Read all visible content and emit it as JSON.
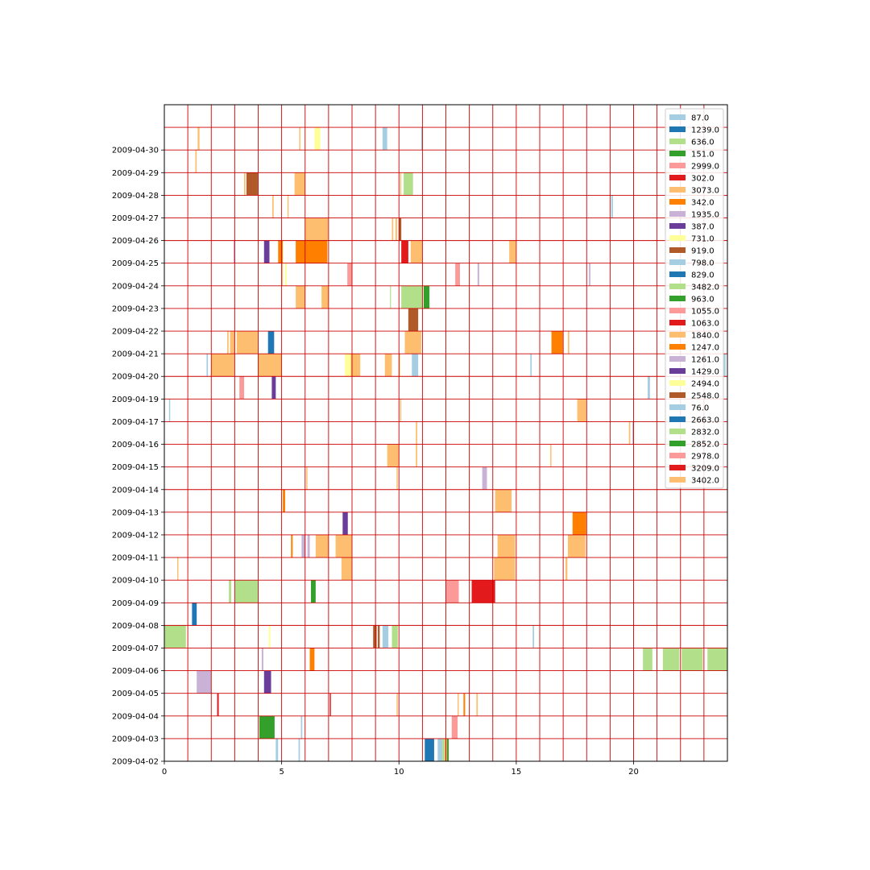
{
  "chart_data": {
    "type": "timeline",
    "xlabel": "",
    "ylabel": "",
    "title": "",
    "xlim": [
      0,
      24
    ],
    "xticks": [
      0,
      5,
      10,
      15,
      20
    ],
    "xtick_labels": [
      "0",
      "5",
      "10",
      "15",
      "20"
    ],
    "vertical_gridlines": [
      1,
      2,
      3,
      4,
      5,
      6,
      7,
      8,
      9,
      10,
      11,
      12,
      13,
      14,
      15,
      16,
      17,
      18,
      19,
      20,
      21,
      22,
      23
    ],
    "grid_color": "#cc0000",
    "grid": true,
    "legend_position": "upper right",
    "rows": [
      "2009-04-02",
      "2009-04-03",
      "2009-04-04",
      "2009-04-05",
      "2009-04-06",
      "2009-04-07",
      "2009-04-08",
      "2009-04-09",
      "2009-04-10",
      "2009-04-11",
      "2009-04-12",
      "2009-04-13",
      "2009-04-14",
      "2009-04-15",
      "2009-04-16",
      "2009-04-17",
      "2009-04-19",
      "2009-04-20",
      "2009-04-21",
      "2009-04-22",
      "2009-04-23",
      "2009-04-24",
      "2009-04-25",
      "2009-04-26",
      "2009-04-27",
      "2009-04-28",
      "2009-04-29",
      "2009-04-30",
      ""
    ],
    "series": [
      {
        "name": "87.0",
        "color": "#a6cee3"
      },
      {
        "name": "1239.0",
        "color": "#1f78b4"
      },
      {
        "name": "636.0",
        "color": "#b2df8a"
      },
      {
        "name": "151.0",
        "color": "#33a02c"
      },
      {
        "name": "2999.0",
        "color": "#fb9a99"
      },
      {
        "name": "302.0",
        "color": "#e31a1c"
      },
      {
        "name": "3073.0",
        "color": "#fdbf6f"
      },
      {
        "name": "342.0",
        "color": "#ff7f00"
      },
      {
        "name": "1935.0",
        "color": "#cab2d6"
      },
      {
        "name": "387.0",
        "color": "#6a3d9a"
      },
      {
        "name": "731.0",
        "color": "#ffff99"
      },
      {
        "name": "919.0",
        "color": "#b15928"
      },
      {
        "name": "798.0",
        "color": "#a6cee3"
      },
      {
        "name": "829.0",
        "color": "#1f78b4"
      },
      {
        "name": "3482.0",
        "color": "#b2df8a"
      },
      {
        "name": "963.0",
        "color": "#33a02c"
      },
      {
        "name": "1055.0",
        "color": "#fb9a99"
      },
      {
        "name": "1063.0",
        "color": "#e31a1c"
      },
      {
        "name": "1840.0",
        "color": "#fdbf6f"
      },
      {
        "name": "1247.0",
        "color": "#ff7f00"
      },
      {
        "name": "1261.0",
        "color": "#cab2d6"
      },
      {
        "name": "1429.0",
        "color": "#6a3d9a"
      },
      {
        "name": "2494.0",
        "color": "#ffff99"
      },
      {
        "name": "2548.0",
        "color": "#b15928"
      },
      {
        "name": "76.0",
        "color": "#a6cee3"
      },
      {
        "name": "2663.0",
        "color": "#1f78b4"
      },
      {
        "name": "2832.0",
        "color": "#b2df8a"
      },
      {
        "name": "2852.0",
        "color": "#33a02c"
      },
      {
        "name": "2978.0",
        "color": "#fb9a99"
      },
      {
        "name": "3209.0",
        "color": "#e31a1c"
      },
      {
        "name": "3402.0",
        "color": "#fdbf6f"
      }
    ],
    "segments": [
      {
        "row": 0,
        "start": 4.75,
        "end": 4.85,
        "color": "#a6cee3"
      },
      {
        "row": 0,
        "start": 5.72,
        "end": 5.78,
        "color": "#a6cee3"
      },
      {
        "row": 0,
        "start": 11.1,
        "end": 11.5,
        "color": "#1f78b4"
      },
      {
        "row": 0,
        "start": 11.65,
        "end": 11.85,
        "color": "#a6cee3"
      },
      {
        "row": 0,
        "start": 11.85,
        "end": 11.95,
        "color": "#b2df8a"
      },
      {
        "row": 0,
        "start": 11.95,
        "end": 12.05,
        "color": "#fdbf6f"
      },
      {
        "row": 0,
        "start": 12.05,
        "end": 12.12,
        "color": "#33a02c"
      },
      {
        "row": 1,
        "start": 4.05,
        "end": 4.7,
        "color": "#33a02c"
      },
      {
        "row": 1,
        "start": 5.82,
        "end": 5.88,
        "color": "#a6cee3"
      },
      {
        "row": 1,
        "start": 12.25,
        "end": 12.5,
        "color": "#fb9a99"
      },
      {
        "row": 2,
        "start": 2.25,
        "end": 2.32,
        "color": "#e31a1c"
      },
      {
        "row": 2,
        "start": 7.05,
        "end": 7.1,
        "color": "#e31a1c"
      },
      {
        "row": 2,
        "start": 9.9,
        "end": 9.95,
        "color": "#fdbf6f"
      },
      {
        "row": 2,
        "start": 12.5,
        "end": 12.55,
        "color": "#fdbf6f"
      },
      {
        "row": 2,
        "start": 12.75,
        "end": 12.82,
        "color": "#ff7f00"
      },
      {
        "row": 2,
        "start": 13.3,
        "end": 13.36,
        "color": "#fdbf6f"
      },
      {
        "row": 3,
        "start": 1.38,
        "end": 2.0,
        "color": "#cab2d6"
      },
      {
        "row": 3,
        "start": 4.25,
        "end": 4.55,
        "color": "#6a3d9a"
      },
      {
        "row": 4,
        "start": 4.15,
        "end": 4.22,
        "color": "#cab2d6"
      },
      {
        "row": 4,
        "start": 6.2,
        "end": 6.4,
        "color": "#ff7f00"
      },
      {
        "row": 4,
        "start": 20.4,
        "end": 20.8,
        "color": "#b2df8a"
      },
      {
        "row": 4,
        "start": 21.25,
        "end": 21.95,
        "color": "#b2df8a"
      },
      {
        "row": 4,
        "start": 22.05,
        "end": 22.95,
        "color": "#b2df8a"
      },
      {
        "row": 4,
        "start": 23.15,
        "end": 24.0,
        "color": "#b2df8a"
      },
      {
        "row": 5,
        "start": 0.0,
        "end": 0.92,
        "color": "#b2df8a"
      },
      {
        "row": 5,
        "start": 4.45,
        "end": 4.52,
        "color": "#ffff99"
      },
      {
        "row": 5,
        "start": 8.9,
        "end": 9.05,
        "color": "#b15928"
      },
      {
        "row": 5,
        "start": 9.1,
        "end": 9.18,
        "color": "#b15928"
      },
      {
        "row": 5,
        "start": 9.3,
        "end": 9.55,
        "color": "#a6cee3"
      },
      {
        "row": 5,
        "start": 9.7,
        "end": 9.95,
        "color": "#b2df8a"
      },
      {
        "row": 5,
        "start": 15.7,
        "end": 15.76,
        "color": "#a6cee3"
      },
      {
        "row": 6,
        "start": 1.18,
        "end": 1.38,
        "color": "#1f78b4"
      },
      {
        "row": 7,
        "start": 2.75,
        "end": 2.85,
        "color": "#b2df8a"
      },
      {
        "row": 7,
        "start": 3.02,
        "end": 3.98,
        "color": "#b2df8a"
      },
      {
        "row": 7,
        "start": 6.25,
        "end": 6.45,
        "color": "#33a02c"
      },
      {
        "row": 7,
        "start": 12.0,
        "end": 12.55,
        "color": "#fb9a99"
      },
      {
        "row": 7,
        "start": 13.1,
        "end": 14.1,
        "color": "#e31a1c"
      },
      {
        "row": 8,
        "start": 0.55,
        "end": 0.6,
        "color": "#fdbf6f"
      },
      {
        "row": 8,
        "start": 7.55,
        "end": 8.0,
        "color": "#fdbf6f"
      },
      {
        "row": 8,
        "start": 14.05,
        "end": 14.95,
        "color": "#fdbf6f"
      },
      {
        "row": 8,
        "start": 17.1,
        "end": 17.18,
        "color": "#fdbf6f"
      },
      {
        "row": 9,
        "start": 5.4,
        "end": 5.47,
        "color": "#ff7f00"
      },
      {
        "row": 9,
        "start": 5.85,
        "end": 6.02,
        "color": "#cab2d6"
      },
      {
        "row": 9,
        "start": 6.1,
        "end": 6.2,
        "color": "#cab2d6"
      },
      {
        "row": 9,
        "start": 6.45,
        "end": 7.0,
        "color": "#fdbf6f"
      },
      {
        "row": 9,
        "start": 7.3,
        "end": 8.0,
        "color": "#fdbf6f"
      },
      {
        "row": 9,
        "start": 14.2,
        "end": 14.95,
        "color": "#fdbf6f"
      },
      {
        "row": 9,
        "start": 17.2,
        "end": 17.95,
        "color": "#fdbf6f"
      },
      {
        "row": 10,
        "start": 7.6,
        "end": 7.82,
        "color": "#6a3d9a"
      },
      {
        "row": 10,
        "start": 17.4,
        "end": 17.98,
        "color": "#ff7f00"
      },
      {
        "row": 11,
        "start": 5.05,
        "end": 5.15,
        "color": "#ff7f00"
      },
      {
        "row": 11,
        "start": 14.1,
        "end": 14.8,
        "color": "#fdbf6f"
      },
      {
        "row": 12,
        "start": 6.05,
        "end": 6.1,
        "color": "#fdbf6f"
      },
      {
        "row": 12,
        "start": 9.9,
        "end": 9.95,
        "color": "#fdbf6f"
      },
      {
        "row": 12,
        "start": 13.55,
        "end": 13.75,
        "color": "#cab2d6"
      },
      {
        "row": 13,
        "start": 9.5,
        "end": 10.0,
        "color": "#fdbf6f"
      },
      {
        "row": 13,
        "start": 10.72,
        "end": 10.78,
        "color": "#fdbf6f"
      },
      {
        "row": 13,
        "start": 16.45,
        "end": 16.5,
        "color": "#fdbf6f"
      },
      {
        "row": 14,
        "start": 10.72,
        "end": 10.78,
        "color": "#fdbf6f"
      },
      {
        "row": 14,
        "start": 19.8,
        "end": 19.86,
        "color": "#fdbf6f"
      },
      {
        "row": 14,
        "start": 19.95,
        "end": 20.0,
        "color": "#cab2d6"
      },
      {
        "row": 15,
        "start": 0.2,
        "end": 0.25,
        "color": "#a6cee3"
      },
      {
        "row": 15,
        "start": 10.05,
        "end": 10.1,
        "color": "#fdbf6f"
      },
      {
        "row": 15,
        "start": 17.6,
        "end": 17.98,
        "color": "#fdbf6f"
      },
      {
        "row": 16,
        "start": 3.2,
        "end": 3.4,
        "color": "#fb9a99"
      },
      {
        "row": 16,
        "start": 4.58,
        "end": 4.75,
        "color": "#6a3d9a"
      },
      {
        "row": 16,
        "start": 20.6,
        "end": 20.7,
        "color": "#a6cee3"
      },
      {
        "row": 17,
        "start": 1.8,
        "end": 1.86,
        "color": "#a6cee3"
      },
      {
        "row": 17,
        "start": 2.0,
        "end": 2.98,
        "color": "#fdbf6f"
      },
      {
        "row": 17,
        "start": 4.0,
        "end": 5.0,
        "color": "#fdbf6f"
      },
      {
        "row": 17,
        "start": 7.7,
        "end": 7.95,
        "color": "#ffff99"
      },
      {
        "row": 17,
        "start": 7.95,
        "end": 8.35,
        "color": "#fdbf6f"
      },
      {
        "row": 17,
        "start": 9.4,
        "end": 9.7,
        "color": "#fdbf6f"
      },
      {
        "row": 17,
        "start": 10.0,
        "end": 10.05,
        "color": "#fdbf6f"
      },
      {
        "row": 17,
        "start": 10.55,
        "end": 10.82,
        "color": "#a6cee3"
      },
      {
        "row": 17,
        "start": 15.6,
        "end": 15.66,
        "color": "#a6cee3"
      },
      {
        "row": 17,
        "start": 23.85,
        "end": 23.92,
        "color": "#a6cee3"
      },
      {
        "row": 18,
        "start": 2.68,
        "end": 2.74,
        "color": "#fdbf6f"
      },
      {
        "row": 18,
        "start": 2.8,
        "end": 3.0,
        "color": "#fdbf6f"
      },
      {
        "row": 18,
        "start": 3.08,
        "end": 3.98,
        "color": "#fdbf6f"
      },
      {
        "row": 18,
        "start": 4.42,
        "end": 4.68,
        "color": "#1f78b4"
      },
      {
        "row": 18,
        "start": 10.25,
        "end": 10.95,
        "color": "#fdbf6f"
      },
      {
        "row": 18,
        "start": 16.5,
        "end": 16.98,
        "color": "#ff7f00"
      },
      {
        "row": 18,
        "start": 17.2,
        "end": 17.26,
        "color": "#fdbf6f"
      },
      {
        "row": 19,
        "start": 10.4,
        "end": 10.82,
        "color": "#b15928"
      },
      {
        "row": 20,
        "start": 5.6,
        "end": 6.0,
        "color": "#fdbf6f"
      },
      {
        "row": 20,
        "start": 6.7,
        "end": 7.0,
        "color": "#fdbf6f"
      },
      {
        "row": 20,
        "start": 9.62,
        "end": 9.66,
        "color": "#b2df8a"
      },
      {
        "row": 20,
        "start": 10.1,
        "end": 11.0,
        "color": "#b2df8a"
      },
      {
        "row": 20,
        "start": 11.05,
        "end": 11.3,
        "color": "#33a02c"
      },
      {
        "row": 21,
        "start": 5.0,
        "end": 5.05,
        "color": "#fdbf6f"
      },
      {
        "row": 21,
        "start": 5.15,
        "end": 5.22,
        "color": "#ffff99"
      },
      {
        "row": 21,
        "start": 7.8,
        "end": 8.0,
        "color": "#fb9a99"
      },
      {
        "row": 21,
        "start": 12.4,
        "end": 12.6,
        "color": "#fb9a99"
      },
      {
        "row": 21,
        "start": 13.35,
        "end": 13.42,
        "color": "#cab2d6"
      },
      {
        "row": 21,
        "start": 18.1,
        "end": 18.16,
        "color": "#cab2d6"
      },
      {
        "row": 22,
        "start": 2.95,
        "end": 3.02,
        "color": "#cab2d6"
      },
      {
        "row": 22,
        "start": 4.25,
        "end": 4.48,
        "color": "#6a3d9a"
      },
      {
        "row": 22,
        "start": 4.85,
        "end": 5.05,
        "color": "#ff7f00"
      },
      {
        "row": 22,
        "start": 5.6,
        "end": 6.0,
        "color": "#ff7f00"
      },
      {
        "row": 22,
        "start": 6.0,
        "end": 6.95,
        "color": "#ff7f00"
      },
      {
        "row": 22,
        "start": 10.1,
        "end": 10.4,
        "color": "#e31a1c"
      },
      {
        "row": 22,
        "start": 10.5,
        "end": 11.0,
        "color": "#fdbf6f"
      },
      {
        "row": 22,
        "start": 14.7,
        "end": 14.98,
        "color": "#fdbf6f"
      },
      {
        "row": 23,
        "start": 6.0,
        "end": 6.98,
        "color": "#fdbf6f"
      },
      {
        "row": 23,
        "start": 9.7,
        "end": 9.76,
        "color": "#fdbf6f"
      },
      {
        "row": 23,
        "start": 9.85,
        "end": 9.92,
        "color": "#fdbf6f"
      },
      {
        "row": 23,
        "start": 10.0,
        "end": 10.1,
        "color": "#b15928"
      },
      {
        "row": 24,
        "start": 4.6,
        "end": 4.66,
        "color": "#fdbf6f"
      },
      {
        "row": 24,
        "start": 5.25,
        "end": 5.3,
        "color": "#fdbf6f"
      },
      {
        "row": 24,
        "start": 19.05,
        "end": 19.12,
        "color": "#a6cee3"
      },
      {
        "row": 25,
        "start": 3.4,
        "end": 3.46,
        "color": "#fdbf6f"
      },
      {
        "row": 25,
        "start": 3.5,
        "end": 3.98,
        "color": "#b15928"
      },
      {
        "row": 25,
        "start": 5.55,
        "end": 6.0,
        "color": "#fdbf6f"
      },
      {
        "row": 25,
        "start": 10.05,
        "end": 10.1,
        "color": "#fdbf6f"
      },
      {
        "row": 25,
        "start": 10.2,
        "end": 10.6,
        "color": "#b2df8a"
      },
      {
        "row": 26,
        "start": 1.32,
        "end": 1.38,
        "color": "#fdbf6f"
      },
      {
        "row": 27,
        "start": 1.42,
        "end": 1.5,
        "color": "#fdbf6f"
      },
      {
        "row": 27,
        "start": 5.75,
        "end": 5.8,
        "color": "#fdbf6f"
      },
      {
        "row": 27,
        "start": 6.4,
        "end": 6.65,
        "color": "#ffff99"
      },
      {
        "row": 27,
        "start": 9.3,
        "end": 9.5,
        "color": "#a6cee3"
      },
      {
        "row": 27,
        "start": 10.95,
        "end": 11.02,
        "color": "#a6cee3"
      }
    ]
  }
}
